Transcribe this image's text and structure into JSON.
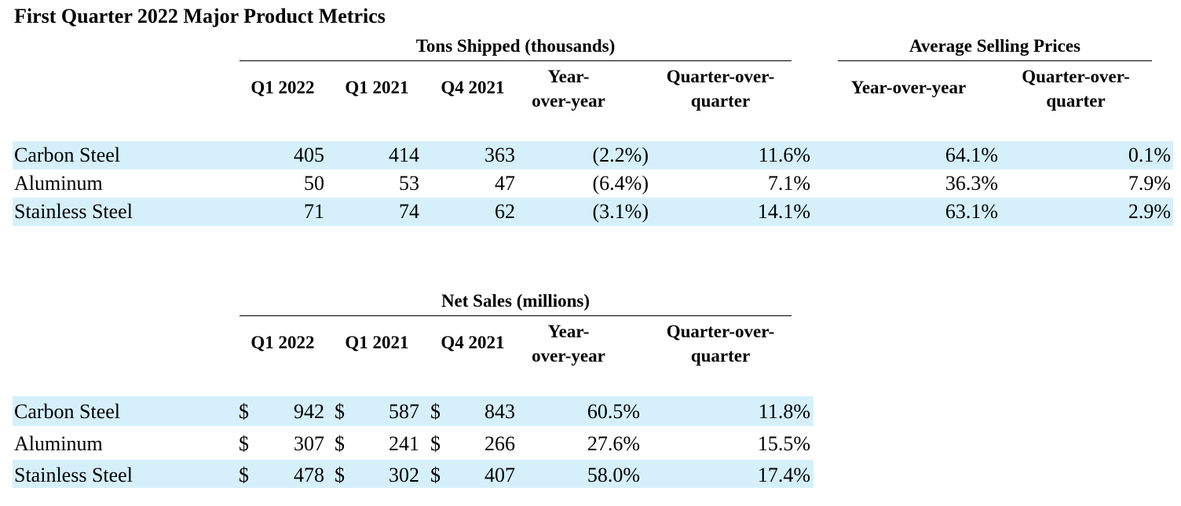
{
  "title": "First Quarter 2022 Major Product Metrics",
  "tons": {
    "group_title": "Tons Shipped (thousands)",
    "headers": [
      "Q1 2022",
      "Q1 2021",
      "Q4 2021",
      "Year-\nover-year",
      "Quarter-over-\nquarter"
    ],
    "rows": [
      {
        "label": "Carbon Steel",
        "values": [
          "405",
          "414",
          "363",
          "(2.2%)",
          "11.6%"
        ]
      },
      {
        "label": "Aluminum",
        "values": [
          "50",
          "53",
          "47",
          "(6.4%)",
          "7.1%"
        ]
      },
      {
        "label": "Stainless Steel",
        "values": [
          "71",
          "74",
          "62",
          "(3.1%)",
          "14.1%"
        ]
      }
    ]
  },
  "asp": {
    "group_title": "Average Selling Prices",
    "headers": [
      "Year-over-year",
      "Quarter-over-\nquarter"
    ],
    "rows": [
      {
        "values": [
          "64.1%",
          "0.1%"
        ]
      },
      {
        "values": [
          "36.3%",
          "7.9%"
        ]
      },
      {
        "values": [
          "63.1%",
          "2.9%"
        ]
      }
    ]
  },
  "sales": {
    "group_title": "Net Sales (millions)",
    "headers": [
      "Q1 2022",
      "Q1 2021",
      "Q4 2021",
      "Year-\nover-year",
      "Quarter-over-\nquarter"
    ],
    "currency": "$",
    "rows": [
      {
        "label": "Carbon Steel",
        "values": [
          "942",
          "587",
          "843",
          "60.5%",
          "11.8%"
        ]
      },
      {
        "label": "Aluminum",
        "values": [
          "307",
          "241",
          "266",
          "27.6%",
          "15.5%"
        ]
      },
      {
        "label": "Stainless Steel",
        "values": [
          "478",
          "302",
          "407",
          "58.0%",
          "17.4%"
        ]
      }
    ]
  },
  "colors": {
    "band": "#d6f0fb"
  }
}
